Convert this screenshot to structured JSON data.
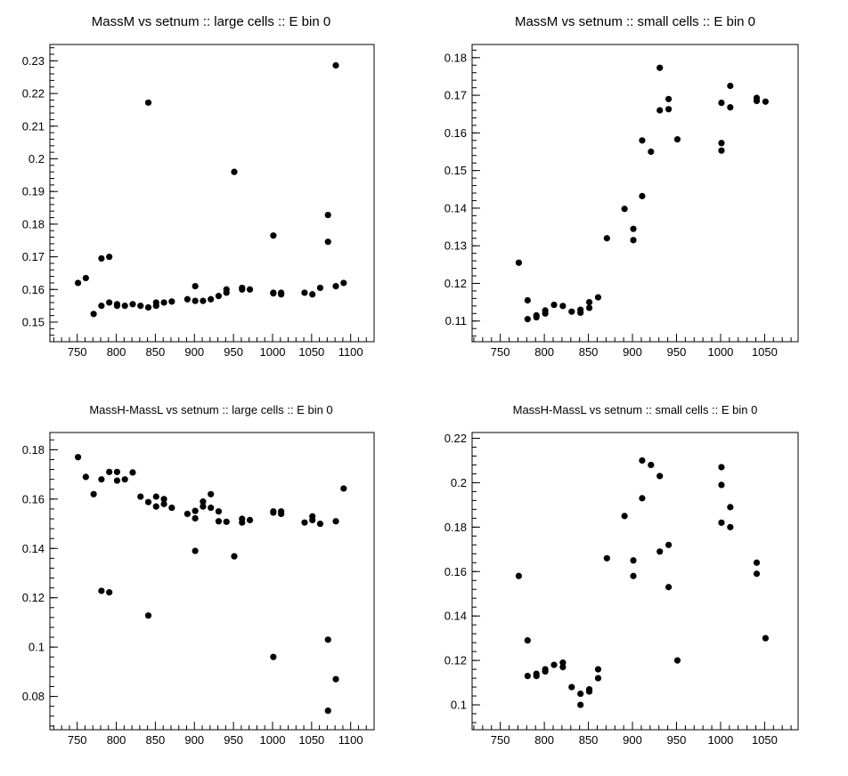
{
  "chart_data": [
    {
      "type": "scatter",
      "title": "MassM vs setnum :: large cells :: E bin 0",
      "xlabel": "",
      "ylabel": "",
      "xlim": [
        715,
        1130
      ],
      "ylim": [
        0.144,
        0.235
      ],
      "xticks": [
        750,
        800,
        850,
        900,
        950,
        1000,
        1050,
        1100
      ],
      "xtick_labels": [
        "750",
        "800",
        "850",
        "900",
        "950",
        "1000",
        "1050",
        "1100"
      ],
      "yticks": [
        0.15,
        0.16,
        0.17,
        0.18,
        0.19,
        0.2,
        0.21,
        0.22,
        0.23
      ],
      "ytick_labels": [
        "0.15",
        "0.16",
        "0.17",
        "0.18",
        "0.19",
        "0.2",
        "0.21",
        "0.22",
        "0.23"
      ],
      "grid": false,
      "series": [
        {
          "x": [
            751,
            761,
            771,
            781,
            781,
            791,
            791,
            801,
            801,
            811,
            821,
            831,
            841,
            841,
            851,
            851,
            861,
            871,
            891,
            901,
            901,
            911,
            921,
            931,
            941,
            941,
            951,
            961,
            961,
            971,
            1001,
            1001,
            1001,
            1011,
            1011,
            1041,
            1051,
            1061,
            1071,
            1071,
            1081,
            1081,
            1091
          ],
          "y": [
            0.162,
            0.1635,
            0.1525,
            0.155,
            0.1695,
            0.156,
            0.17,
            0.155,
            0.1555,
            0.155,
            0.1555,
            0.155,
            0.1545,
            0.2172,
            0.155,
            0.156,
            0.156,
            0.1563,
            0.157,
            0.161,
            0.1565,
            0.1565,
            0.157,
            0.158,
            0.16,
            0.159,
            0.196,
            0.1605,
            0.16,
            0.16,
            0.1765,
            0.159,
            0.1588,
            0.159,
            0.1585,
            0.159,
            0.1585,
            0.1605,
            0.1828,
            0.1746,
            0.2286,
            0.161,
            0.162
          ]
        }
      ]
    },
    {
      "type": "scatter",
      "title": "MassM vs setnum :: small cells :: E bin 0",
      "xlabel": "",
      "ylabel": "",
      "xlim": [
        718,
        1088
      ],
      "ylim": [
        0.1045,
        0.1835
      ],
      "xticks": [
        750,
        800,
        850,
        900,
        950,
        1000,
        1050
      ],
      "xtick_labels": [
        "750",
        "800",
        "850",
        "900",
        "950",
        "1000",
        "1050"
      ],
      "yticks": [
        0.11,
        0.12,
        0.13,
        0.14,
        0.15,
        0.16,
        0.17,
        0.18
      ],
      "ytick_labels": [
        "0.11",
        "0.12",
        "0.13",
        "0.14",
        "0.15",
        "0.16",
        "0.17",
        "0.18"
      ],
      "grid": false,
      "series": [
        {
          "x": [
            771,
            781,
            781,
            791,
            791,
            801,
            801,
            811,
            821,
            831,
            841,
            841,
            851,
            851,
            861,
            871,
            891,
            901,
            901,
            911,
            911,
            921,
            931,
            931,
            941,
            941,
            951,
            1001,
            1001,
            1001,
            1011,
            1011,
            1041,
            1041,
            1051
          ],
          "y": [
            0.1255,
            0.1155,
            0.1105,
            0.111,
            0.1115,
            0.112,
            0.1128,
            0.1143,
            0.114,
            0.1125,
            0.113,
            0.1122,
            0.115,
            0.1135,
            0.1163,
            0.132,
            0.1398,
            0.1345,
            0.1315,
            0.158,
            0.1432,
            0.155,
            0.1773,
            0.166,
            0.169,
            0.1663,
            0.1583,
            0.1573,
            0.168,
            0.1553,
            0.1725,
            0.1668,
            0.1693,
            0.1685,
            0.1683
          ]
        }
      ]
    },
    {
      "type": "scatter",
      "title": "MassH-MassL vs setnum :: large cells :: E bin 0",
      "xlabel": "",
      "ylabel": "",
      "xlim": [
        715,
        1130
      ],
      "ylim": [
        0.0665,
        0.187
      ],
      "xticks": [
        750,
        800,
        850,
        900,
        950,
        1000,
        1050,
        1100
      ],
      "xtick_labels": [
        "750",
        "800",
        "850",
        "900",
        "950",
        "1000",
        "1050",
        "1100"
      ],
      "yticks": [
        0.08,
        0.1,
        0.12,
        0.14,
        0.16,
        0.18
      ],
      "ytick_labels": [
        "0.08",
        "0.1",
        "0.12",
        "0.14",
        "0.16",
        "0.18"
      ],
      "grid": false,
      "series": [
        {
          "x": [
            751,
            761,
            771,
            781,
            781,
            791,
            791,
            801,
            801,
            811,
            821,
            831,
            841,
            841,
            851,
            851,
            861,
            861,
            871,
            891,
            901,
            901,
            901,
            911,
            911,
            921,
            921,
            931,
            931,
            941,
            951,
            961,
            961,
            971,
            1001,
            1001,
            1001,
            1011,
            1011,
            1041,
            1051,
            1051,
            1061,
            1071,
            1071,
            1081,
            1081,
            1091
          ],
          "y": [
            0.177,
            0.169,
            0.162,
            0.168,
            0.1228,
            0.171,
            0.1222,
            0.171,
            0.1675,
            0.168,
            0.1708,
            0.161,
            0.1588,
            0.1128,
            0.161,
            0.157,
            0.16,
            0.158,
            0.1565,
            0.154,
            0.1522,
            0.1552,
            0.139,
            0.159,
            0.157,
            0.162,
            0.1565,
            0.155,
            0.151,
            0.1508,
            0.1368,
            0.152,
            0.1505,
            0.1515,
            0.155,
            0.1545,
            0.096,
            0.155,
            0.154,
            0.1505,
            0.153,
            0.1515,
            0.15,
            0.103,
            0.0742,
            0.151,
            0.087,
            0.1643
          ]
        }
      ]
    },
    {
      "type": "scatter",
      "title": "MassH-MassL vs setnum :: small cells :: E bin 0",
      "xlabel": "",
      "ylabel": "",
      "xlim": [
        718,
        1088
      ],
      "ylim": [
        0.0888,
        0.2226
      ],
      "xticks": [
        750,
        800,
        850,
        900,
        950,
        1000,
        1050
      ],
      "xtick_labels": [
        "750",
        "800",
        "850",
        "900",
        "950",
        "1000",
        "1050"
      ],
      "yticks": [
        0.1,
        0.12,
        0.14,
        0.16,
        0.18,
        0.2,
        0.22
      ],
      "ytick_labels": [
        "0.1",
        "0.12",
        "0.14",
        "0.16",
        "0.18",
        "0.2",
        "0.22"
      ],
      "grid": false,
      "series": [
        {
          "x": [
            771,
            781,
            781,
            791,
            791,
            801,
            801,
            811,
            821,
            821,
            831,
            841,
            841,
            851,
            851,
            861,
            861,
            871,
            891,
            901,
            901,
            911,
            911,
            921,
            931,
            931,
            941,
            941,
            951,
            1001,
            1001,
            1001,
            1011,
            1011,
            1041,
            1041,
            1051
          ],
          "y": [
            0.158,
            0.129,
            0.113,
            0.113,
            0.114,
            0.115,
            0.116,
            0.118,
            0.119,
            0.117,
            0.108,
            0.105,
            0.1,
            0.106,
            0.107,
            0.116,
            0.112,
            0.166,
            0.185,
            0.165,
            0.158,
            0.21,
            0.193,
            0.208,
            0.203,
            0.169,
            0.172,
            0.153,
            0.12,
            0.207,
            0.199,
            0.182,
            0.189,
            0.18,
            0.164,
            0.159,
            0.13
          ]
        }
      ]
    }
  ]
}
